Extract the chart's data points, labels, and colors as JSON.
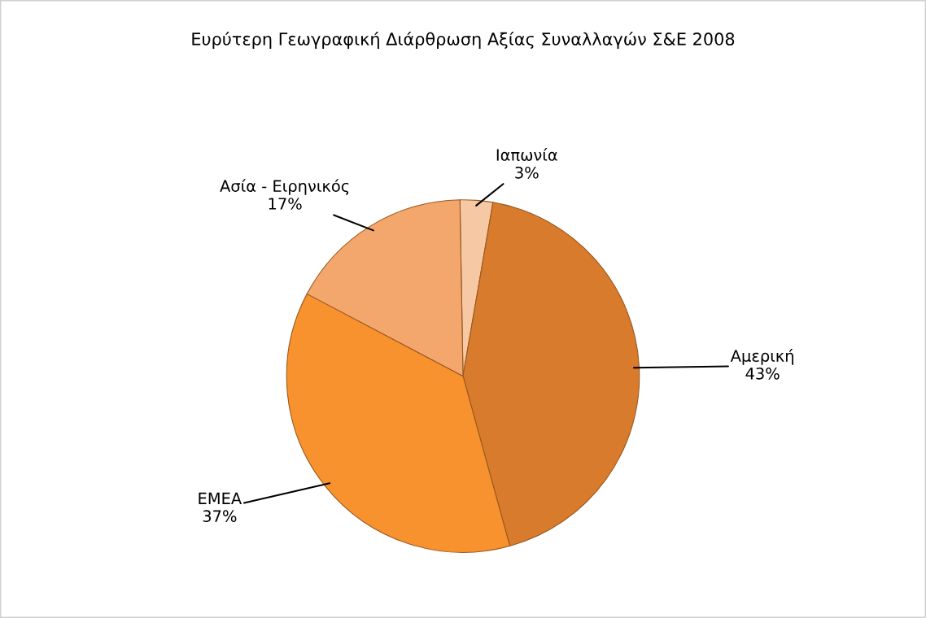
{
  "chart_data": {
    "type": "pie",
    "title": "Ευρύτερη Γεωγραφική Διάρθρωση Αξίας Συναλλαγών Σ&Ε 2008",
    "categories": [
      "Ιαπωνία",
      "Αμερική",
      "EMEA",
      "Ασία - Ειρηνικός"
    ],
    "values": [
      3,
      43,
      37,
      17
    ],
    "value_labels": [
      "3%",
      "43%",
      "37%",
      "17%"
    ],
    "colors": [
      "#f6c8a4",
      "#d97b2c",
      "#f7922e",
      "#f4a76c"
    ],
    "legend": false
  }
}
